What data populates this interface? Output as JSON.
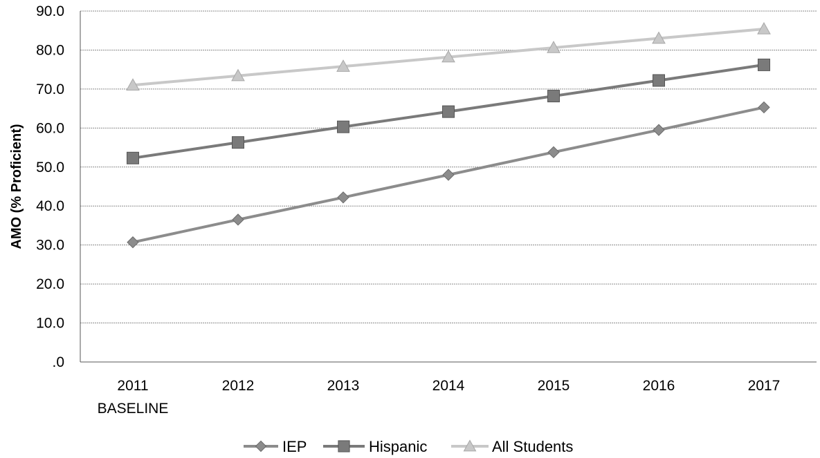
{
  "chart_data": {
    "type": "line",
    "title": "",
    "xlabel": "",
    "ylabel": "AMO (% Proficient)",
    "categories": [
      "2011",
      "2012",
      "2013",
      "2014",
      "2015",
      "2016",
      "2017"
    ],
    "category_sublabels": [
      "BASELINE",
      "",
      "",
      "",
      "",
      "",
      ""
    ],
    "ylim": [
      0,
      90
    ],
    "yticks": [
      ".0",
      "10.0",
      "20.0",
      "30.0",
      "40.0",
      "50.0",
      "60.0",
      "70.0",
      "80.0",
      "90.0"
    ],
    "grid": true,
    "legend_position": "bottom",
    "series": [
      {
        "name": "IEP",
        "marker": "diamond",
        "color": "#8c8c8c",
        "values": [
          30.7,
          36.5,
          42.2,
          48.0,
          53.8,
          59.5,
          65.3
        ]
      },
      {
        "name": "Hispanic",
        "marker": "square",
        "color": "#7a7a7a",
        "values": [
          52.3,
          56.3,
          60.3,
          64.2,
          68.2,
          72.2,
          76.2
        ]
      },
      {
        "name": "All Students",
        "marker": "triangle",
        "color": "#c8c8c8",
        "values": [
          71.0,
          73.4,
          75.8,
          78.2,
          80.6,
          83.0,
          85.4
        ]
      }
    ]
  }
}
